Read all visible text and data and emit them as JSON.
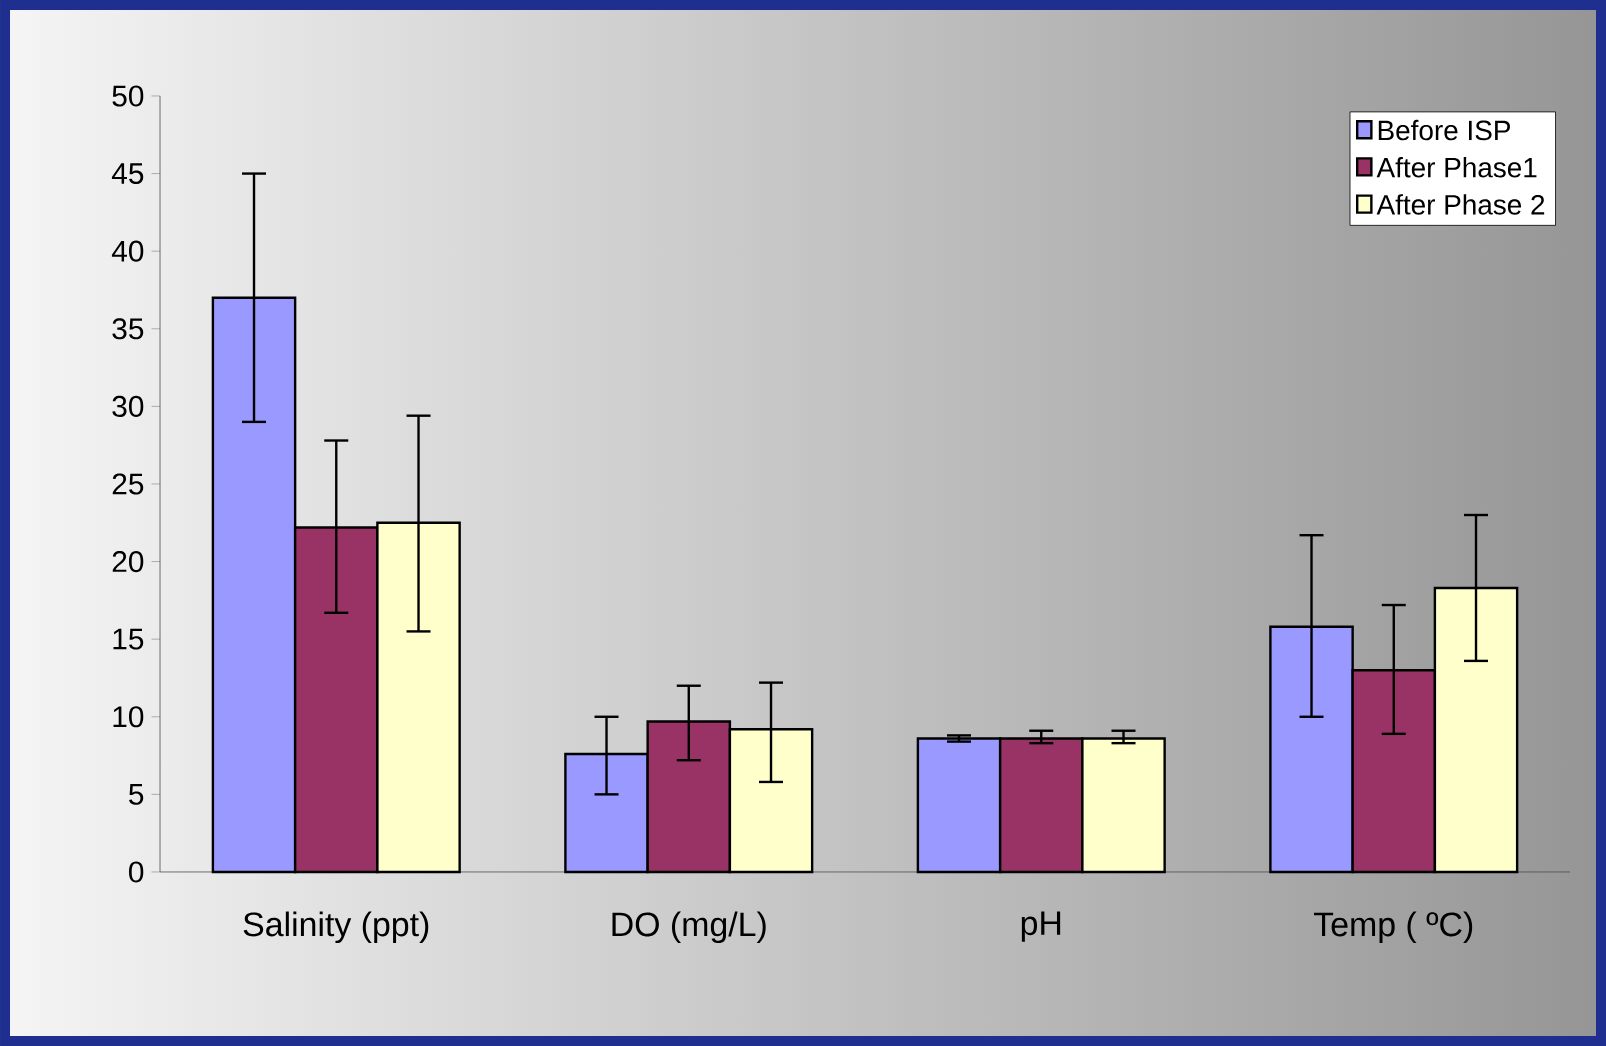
{
  "chart_data": {
    "type": "bar",
    "categories": [
      "Salinity (ppt)",
      "DO (mg/L)",
      "pH",
      "Temp ( ºC)"
    ],
    "series": [
      {
        "name": "Before ISP",
        "color": "#9999ff",
        "values": [
          37,
          7.6,
          8.6,
          15.8
        ],
        "errors": [
          [
            29,
            45
          ],
          [
            5.0,
            10.0
          ],
          [
            8.4,
            8.8
          ],
          [
            10,
            21.7
          ]
        ]
      },
      {
        "name": "After Phase1",
        "color": "#993366",
        "values": [
          22.2,
          9.7,
          8.6,
          13.0
        ],
        "errors": [
          [
            16.7,
            27.8
          ],
          [
            7.2,
            12.0
          ],
          [
            8.3,
            9.1
          ],
          [
            8.9,
            17.2
          ]
        ]
      },
      {
        "name": "After Phase 2",
        "color": "#ffffcc",
        "values": [
          22.5,
          9.2,
          8.6,
          18.3
        ],
        "errors": [
          [
            15.5,
            29.4
          ],
          [
            5.8,
            12.2
          ],
          [
            8.3,
            9.1
          ],
          [
            13.6,
            23.0
          ]
        ]
      }
    ],
    "ylim": [
      0,
      50
    ],
    "yticks": [
      0,
      5,
      10,
      15,
      20,
      25,
      30,
      35,
      40,
      45,
      50
    ],
    "grid": false,
    "legend": "top right"
  }
}
